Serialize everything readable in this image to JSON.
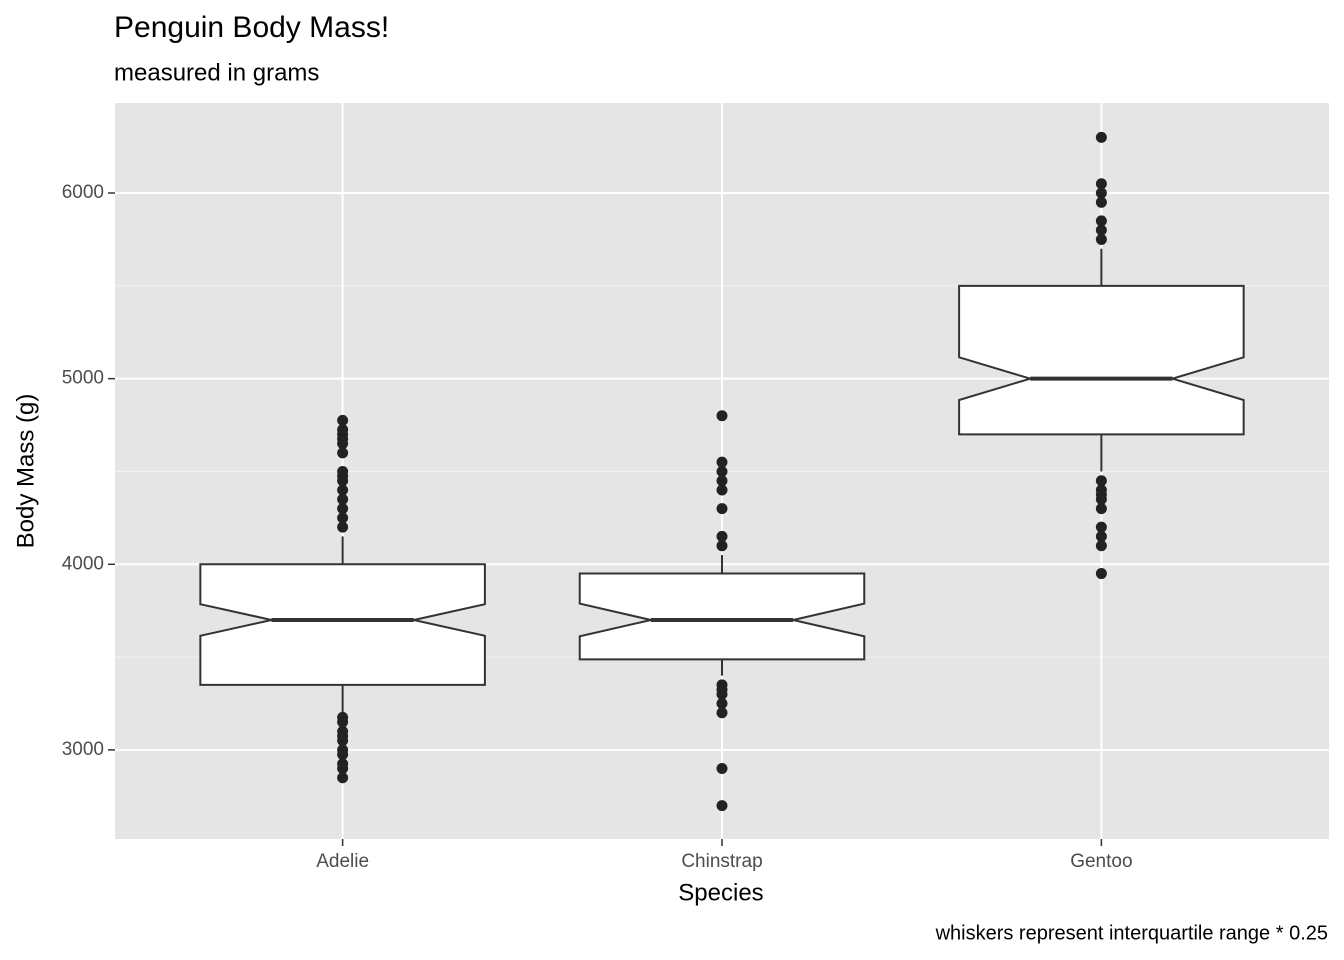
{
  "chart_data": {
    "type": "box",
    "title": "Penguin Body Mass!",
    "subtitle": "measured in grams",
    "x_label": "Species",
    "y_label": "Body Mass (g)",
    "caption": "whiskers represent interquartile range * 0.25",
    "categories": [
      "Adelie",
      "Chinstrap",
      "Gentoo"
    ],
    "boxes": [
      {
        "whisker_low": 3200,
        "q1": 3350,
        "notch_low": 3615,
        "median": 3700,
        "notch_high": 3785,
        "q3": 4000,
        "whisker_high": 4150,
        "outliers": [
          4775,
          4725,
          4700,
          4675,
          4650,
          4600,
          4500,
          4475,
          4450,
          4400,
          4350,
          4300,
          4250,
          4200,
          3175,
          3150,
          3100,
          3075,
          3050,
          3000,
          2975,
          2925,
          2900,
          2850
        ]
      },
      {
        "whisker_low": 3400,
        "q1": 3488,
        "notch_low": 3612,
        "median": 3700,
        "notch_high": 3788,
        "q3": 3950,
        "whisker_high": 4050,
        "outliers": [
          4800,
          4550,
          4500,
          4450,
          4400,
          4300,
          4150,
          4100,
          3350,
          3325,
          3300,
          3250,
          3200,
          2900,
          2700
        ]
      },
      {
        "whisker_low": 4500,
        "q1": 4700,
        "notch_low": 4885,
        "median": 5000,
        "notch_high": 5115,
        "q3": 5500,
        "whisker_high": 5700,
        "outliers": [
          6300,
          6050,
          6000,
          5950,
          5850,
          5800,
          5750,
          4450,
          4400,
          4375,
          4350,
          4300,
          4200,
          4150,
          4100,
          3950
        ]
      }
    ],
    "box_fill": "#ffffff",
    "box_stroke": "#333333",
    "point_color": "#222222",
    "ylim": [
      2520,
      6485
    ],
    "yticks": [
      3000,
      4000,
      5000,
      6000
    ],
    "minor_yticks": [
      3500,
      4500,
      5500
    ],
    "grid": true
  }
}
